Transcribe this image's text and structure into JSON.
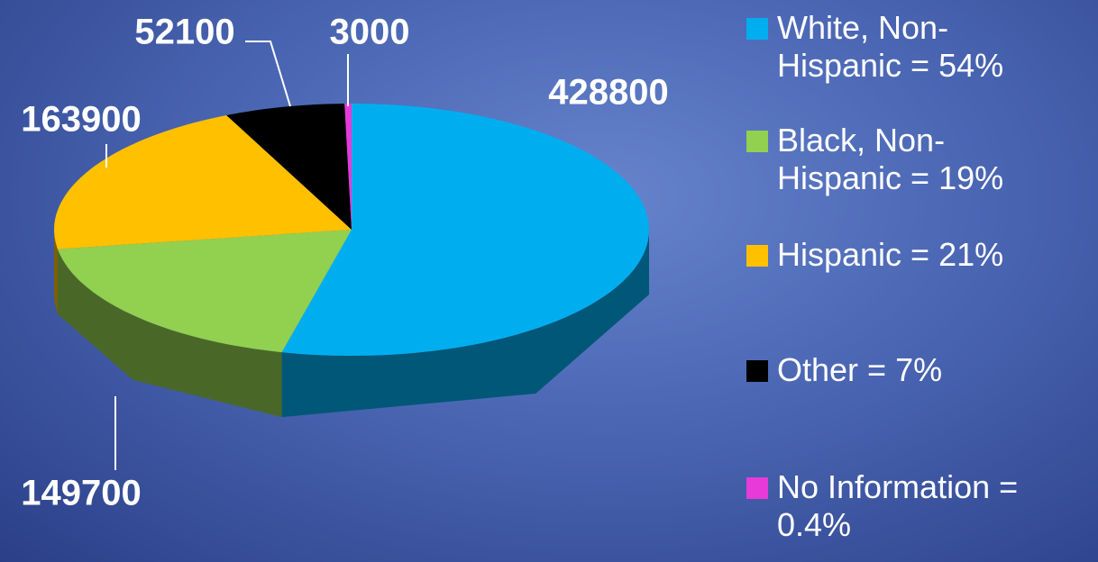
{
  "chart_data": {
    "type": "pie",
    "categories": [
      "White, Non-Hispanic = 54%",
      "Black, Non-Hispanic = 19%",
      "Hispanic = 21%",
      "Other = 7%",
      "No Information = 0.4%"
    ],
    "values": [
      428800,
      149700,
      163900,
      52100,
      3000
    ],
    "colors": [
      "#00aeef",
      "#92d050",
      "#ffc000",
      "#000000",
      "#e83ad8"
    ],
    "legend": "right"
  }
}
